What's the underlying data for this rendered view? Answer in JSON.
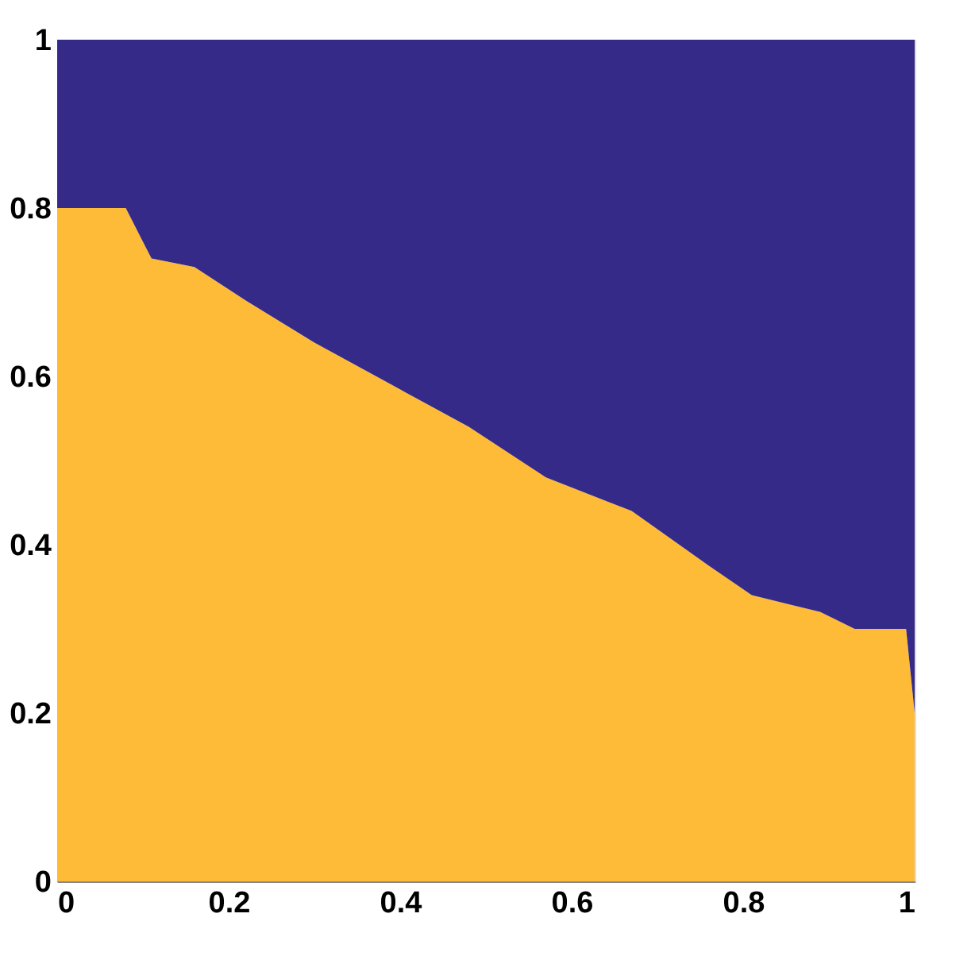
{
  "chart_data": {
    "type": "area",
    "stacked": true,
    "x": [
      0,
      0.08,
      0.09,
      0.1,
      0.11,
      0.16,
      0.22,
      0.3,
      0.39,
      0.48,
      0.57,
      0.67,
      0.76,
      0.81,
      0.89,
      0.93,
      0.99,
      1
    ],
    "series": [
      {
        "color": "#fdbb38",
        "values": [
          0.8,
          0.8,
          0.78,
          0.76,
          0.74,
          0.73,
          0.69,
          0.64,
          0.59,
          0.54,
          0.48,
          0.44,
          0.375,
          0.34,
          0.32,
          0.3,
          0.3,
          0.2
        ]
      },
      {
        "color": "#352a87",
        "values": [
          0.2,
          0.2,
          0.22,
          0.24,
          0.26,
          0.27,
          0.31,
          0.36,
          0.41,
          0.46,
          0.52,
          0.56,
          0.625,
          0.66,
          0.68,
          0.7,
          0.7,
          0.8
        ]
      }
    ],
    "xlim": [
      0,
      1
    ],
    "ylim": [
      0,
      1
    ],
    "xticks": [
      0,
      0.2,
      0.4,
      0.6,
      0.8,
      1
    ],
    "yticks": [
      0,
      0.2,
      0.4,
      0.6,
      0.8,
      1
    ],
    "grid": false,
    "legend": false
  }
}
